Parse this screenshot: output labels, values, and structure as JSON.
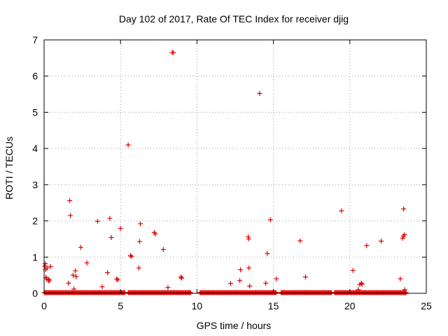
{
  "chart_data": {
    "type": "scatter",
    "title": "Day 102 of 2017, Rate Of TEC Index for receiver djig",
    "xlabel": "GPS time / hours",
    "ylabel": "ROTI / TECUs",
    "xlim": [
      0,
      25
    ],
    "ylim": [
      0,
      7
    ],
    "xticks": [
      0,
      5,
      10,
      15,
      20,
      25
    ],
    "yticks": [
      0,
      1,
      2,
      3,
      4,
      5,
      6,
      7
    ],
    "grid": true,
    "marker": "+",
    "color": "#e00000",
    "baseline_segments": [
      [
        0.0,
        5.3
      ],
      [
        5.5,
        9.6
      ],
      [
        10.2,
        15.2
      ],
      [
        15.5,
        18.8
      ],
      [
        19.0,
        23.7
      ]
    ],
    "baseline_value": 0.02,
    "points": [
      [
        0.05,
        0.75
      ],
      [
        0.08,
        0.82
      ],
      [
        0.1,
        0.65
      ],
      [
        0.12,
        0.44
      ],
      [
        0.15,
        0.4
      ],
      [
        0.2,
        0.7
      ],
      [
        0.28,
        0.38
      ],
      [
        0.32,
        0.33
      ],
      [
        0.35,
        0.37
      ],
      [
        0.42,
        0.74
      ],
      [
        1.6,
        0.28
      ],
      [
        1.68,
        2.56
      ],
      [
        1.72,
        2.15
      ],
      [
        1.9,
        0.5
      ],
      [
        1.95,
        0.12
      ],
      [
        2.05,
        0.62
      ],
      [
        2.1,
        0.46
      ],
      [
        2.4,
        1.27
      ],
      [
        2.8,
        0.84
      ],
      [
        3.5,
        1.99
      ],
      [
        3.8,
        0.18
      ],
      [
        4.15,
        0.57
      ],
      [
        4.3,
        2.07
      ],
      [
        4.4,
        1.54
      ],
      [
        4.75,
        0.4
      ],
      [
        4.82,
        0.37
      ],
      [
        5.0,
        1.79
      ],
      [
        5.5,
        4.1
      ],
      [
        5.65,
        1.04
      ],
      [
        5.72,
        1.02
      ],
      [
        6.2,
        0.7
      ],
      [
        6.25,
        1.43
      ],
      [
        6.3,
        1.92
      ],
      [
        7.2,
        1.68
      ],
      [
        7.28,
        1.64
      ],
      [
        7.8,
        1.21
      ],
      [
        8.1,
        0.16
      ],
      [
        8.38,
        6.65
      ],
      [
        8.45,
        6.65
      ],
      [
        8.95,
        0.45
      ],
      [
        9.0,
        0.42
      ],
      [
        12.2,
        0.27
      ],
      [
        12.8,
        0.35
      ],
      [
        12.85,
        0.65
      ],
      [
        13.35,
        1.56
      ],
      [
        13.38,
        1.5
      ],
      [
        13.4,
        0.7
      ],
      [
        13.45,
        0.2
      ],
      [
        14.1,
        5.52
      ],
      [
        14.5,
        0.28
      ],
      [
        14.6,
        1.1
      ],
      [
        14.8,
        2.03
      ],
      [
        15.2,
        0.4
      ],
      [
        16.75,
        1.45
      ],
      [
        17.1,
        0.45
      ],
      [
        19.45,
        2.28
      ],
      [
        20.2,
        0.63
      ],
      [
        20.55,
        0.1
      ],
      [
        20.65,
        0.24
      ],
      [
        20.75,
        0.28
      ],
      [
        20.8,
        0.25
      ],
      [
        21.1,
        1.32
      ],
      [
        22.05,
        1.44
      ],
      [
        23.3,
        0.4
      ],
      [
        23.45,
        1.52
      ],
      [
        23.5,
        1.58
      ],
      [
        23.52,
        2.33
      ],
      [
        23.58,
        1.62
      ],
      [
        23.6,
        0.1
      ]
    ]
  }
}
